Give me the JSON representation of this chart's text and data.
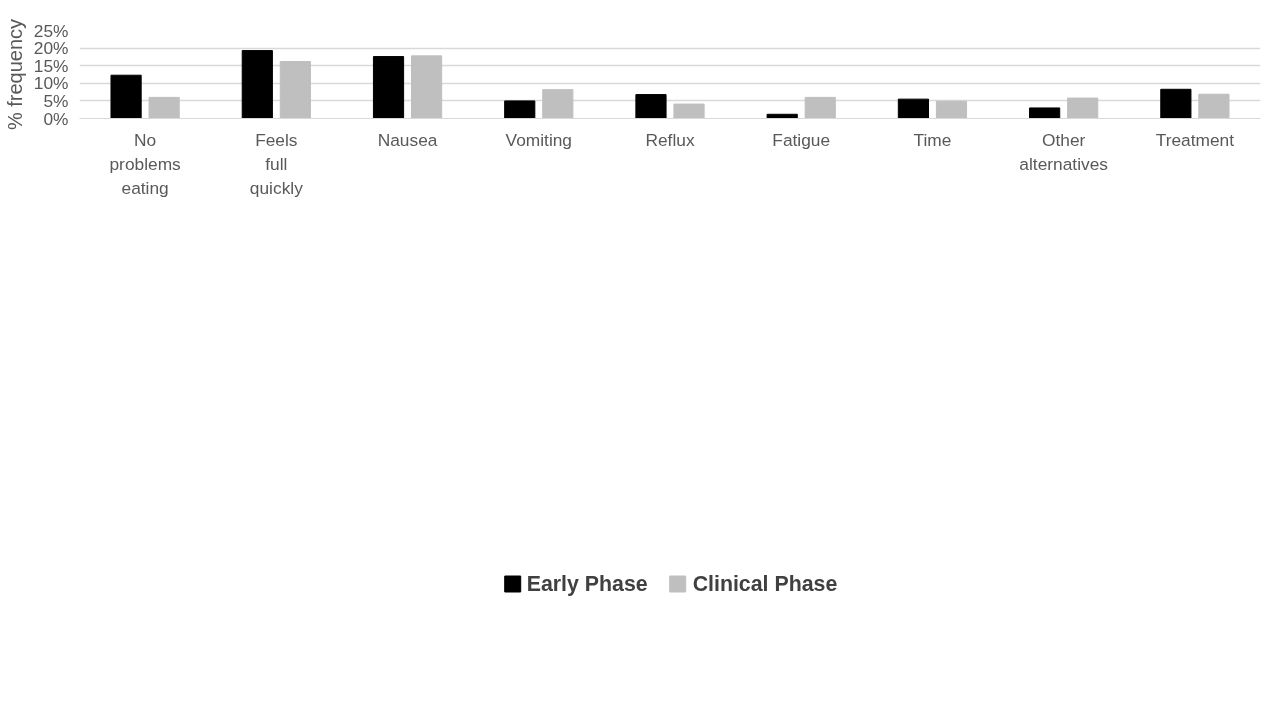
{
  "chart_data": {
    "type": "bar",
    "ylabel": "% frequency",
    "categories": [
      "No problems eating",
      "Feels full quickly",
      "Nausea",
      "Vomiting",
      "Reflux",
      "Fatigue",
      "Time",
      "Other alternatives",
      "Treatment"
    ],
    "series": [
      {
        "name": "Early Phase",
        "color": "#000000",
        "values": [
          12.3,
          19.3,
          17.6,
          5.0,
          6.8,
          1.2,
          5.5,
          3.0,
          8.3
        ]
      },
      {
        "name": "Clinical Phase",
        "color": "#bfbfbf",
        "values": [
          6.0,
          16.2,
          17.8,
          8.2,
          4.1,
          6.0,
          4.9,
          5.8,
          6.9
        ]
      }
    ],
    "ylim": [
      0,
      25
    ],
    "yticks": [
      {
        "value": 0,
        "label": "0%"
      },
      {
        "value": 5,
        "label": "5%"
      },
      {
        "value": 10,
        "label": "10%"
      },
      {
        "value": 15,
        "label": "15%"
      },
      {
        "value": 20,
        "label": "20%"
      },
      {
        "value": 25,
        "label": "25%"
      }
    ],
    "grid": "y",
    "legend": "bottom"
  }
}
